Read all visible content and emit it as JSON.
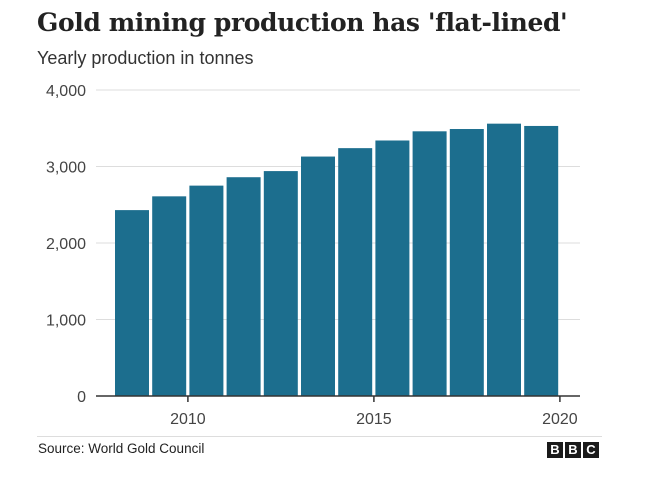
{
  "chart_data": {
    "type": "bar",
    "title": "Gold mining production has 'flat-lined'",
    "subtitle": "Yearly production in tonnes",
    "xlabel": "",
    "ylabel": "",
    "categories": [
      "2008",
      "2009",
      "2010",
      "2011",
      "2012",
      "2013",
      "2014",
      "2015",
      "2016",
      "2017",
      "2018",
      "2019"
    ],
    "values": [
      2430,
      2610,
      2750,
      2860,
      2940,
      3130,
      3240,
      3340,
      3460,
      3490,
      3560,
      3530
    ],
    "ylim": [
      0,
      4000
    ],
    "yticks": [
      0,
      1000,
      2000,
      3000,
      4000
    ],
    "ytick_labels": [
      "0",
      "1,000",
      "2,000",
      "3,000",
      "4,000"
    ],
    "xlim": [
      2007.5,
      2020
    ],
    "xticks": [
      2010,
      2015,
      2020
    ],
    "xtick_labels": [
      "2010",
      "2015",
      "2020"
    ],
    "grid": true,
    "bar_color": "#1c6e8e",
    "grid_color": "#dddddd",
    "axis_color": "#333333"
  },
  "source": "Source: World Gold Council",
  "logo": {
    "letters": [
      "B",
      "B",
      "C"
    ]
  }
}
